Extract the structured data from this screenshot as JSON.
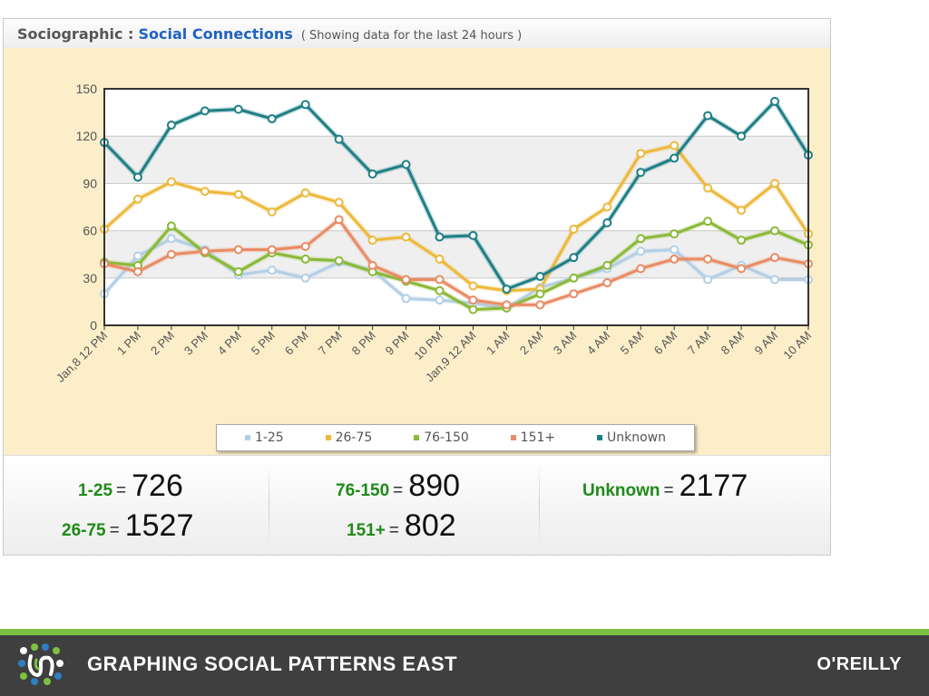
{
  "header": {
    "title": "Sociographic :",
    "subtitle": "Social Connections",
    "note": "( Showing data for the last 24 hours )"
  },
  "chart_data": {
    "type": "line",
    "title": "Social Connections",
    "xlabel": "",
    "ylabel": "",
    "ylim": [
      0,
      150
    ],
    "yticks": [
      0,
      30,
      60,
      90,
      120,
      150
    ],
    "grid": true,
    "legend_position": "bottom-center",
    "categories": [
      "Jan,8 12 PM",
      "1 PM",
      "2 PM",
      "3 PM",
      "4 PM",
      "5 PM",
      "6 PM",
      "7 PM",
      "8 PM",
      "9 PM",
      "10 PM",
      "Jan,9 12 AM",
      "1 AM",
      "2 AM",
      "3 AM",
      "4 AM",
      "5 AM",
      "6 AM",
      "7 AM",
      "8 AM",
      "9 AM",
      "10 AM"
    ],
    "series": [
      {
        "name": "1-25",
        "color": "#b3cfe6",
        "values": [
          20,
          44,
          55,
          48,
          32,
          35,
          30,
          40,
          35,
          17,
          16,
          14,
          11,
          24,
          30,
          36,
          47,
          48,
          29,
          38,
          29,
          29
        ]
      },
      {
        "name": "26-75",
        "color": "#edb93c",
        "values": [
          61,
          80,
          91,
          85,
          83,
          72,
          84,
          78,
          54,
          56,
          42,
          25,
          22,
          23,
          61,
          75,
          109,
          114,
          87,
          73,
          90,
          58
        ]
      },
      {
        "name": "76-150",
        "color": "#8ab936",
        "values": [
          40,
          38,
          63,
          46,
          34,
          46,
          42,
          41,
          34,
          28,
          22,
          10,
          11,
          20,
          30,
          38,
          55,
          58,
          66,
          54,
          60,
          51
        ]
      },
      {
        "name": "151+",
        "color": "#e98b64",
        "values": [
          39,
          34,
          45,
          47,
          48,
          48,
          50,
          67,
          38,
          29,
          29,
          16,
          13,
          13,
          20,
          27,
          36,
          42,
          42,
          36,
          43,
          39
        ]
      },
      {
        "name": "Unknown",
        "color": "#1e7f85",
        "values": [
          116,
          94,
          127,
          136,
          137,
          131,
          140,
          118,
          96,
          102,
          56,
          57,
          23,
          31,
          43,
          65,
          97,
          106,
          133,
          120,
          142,
          108
        ]
      }
    ]
  },
  "totals": [
    {
      "label": "1-25",
      "value": "726"
    },
    {
      "label": "26-75",
      "value": "1527"
    },
    {
      "label": "76-150",
      "value": "890"
    },
    {
      "label": "151+",
      "value": "802"
    },
    {
      "label": "Unknown",
      "value": "2177"
    }
  ],
  "eq_sign": "=",
  "footer": {
    "title": "GRAPHING SOCIAL PATTERNS EAST",
    "publisher": "O'REILLY",
    "stripe_color": "#7cc142",
    "bar_color": "#3f3f3f"
  }
}
